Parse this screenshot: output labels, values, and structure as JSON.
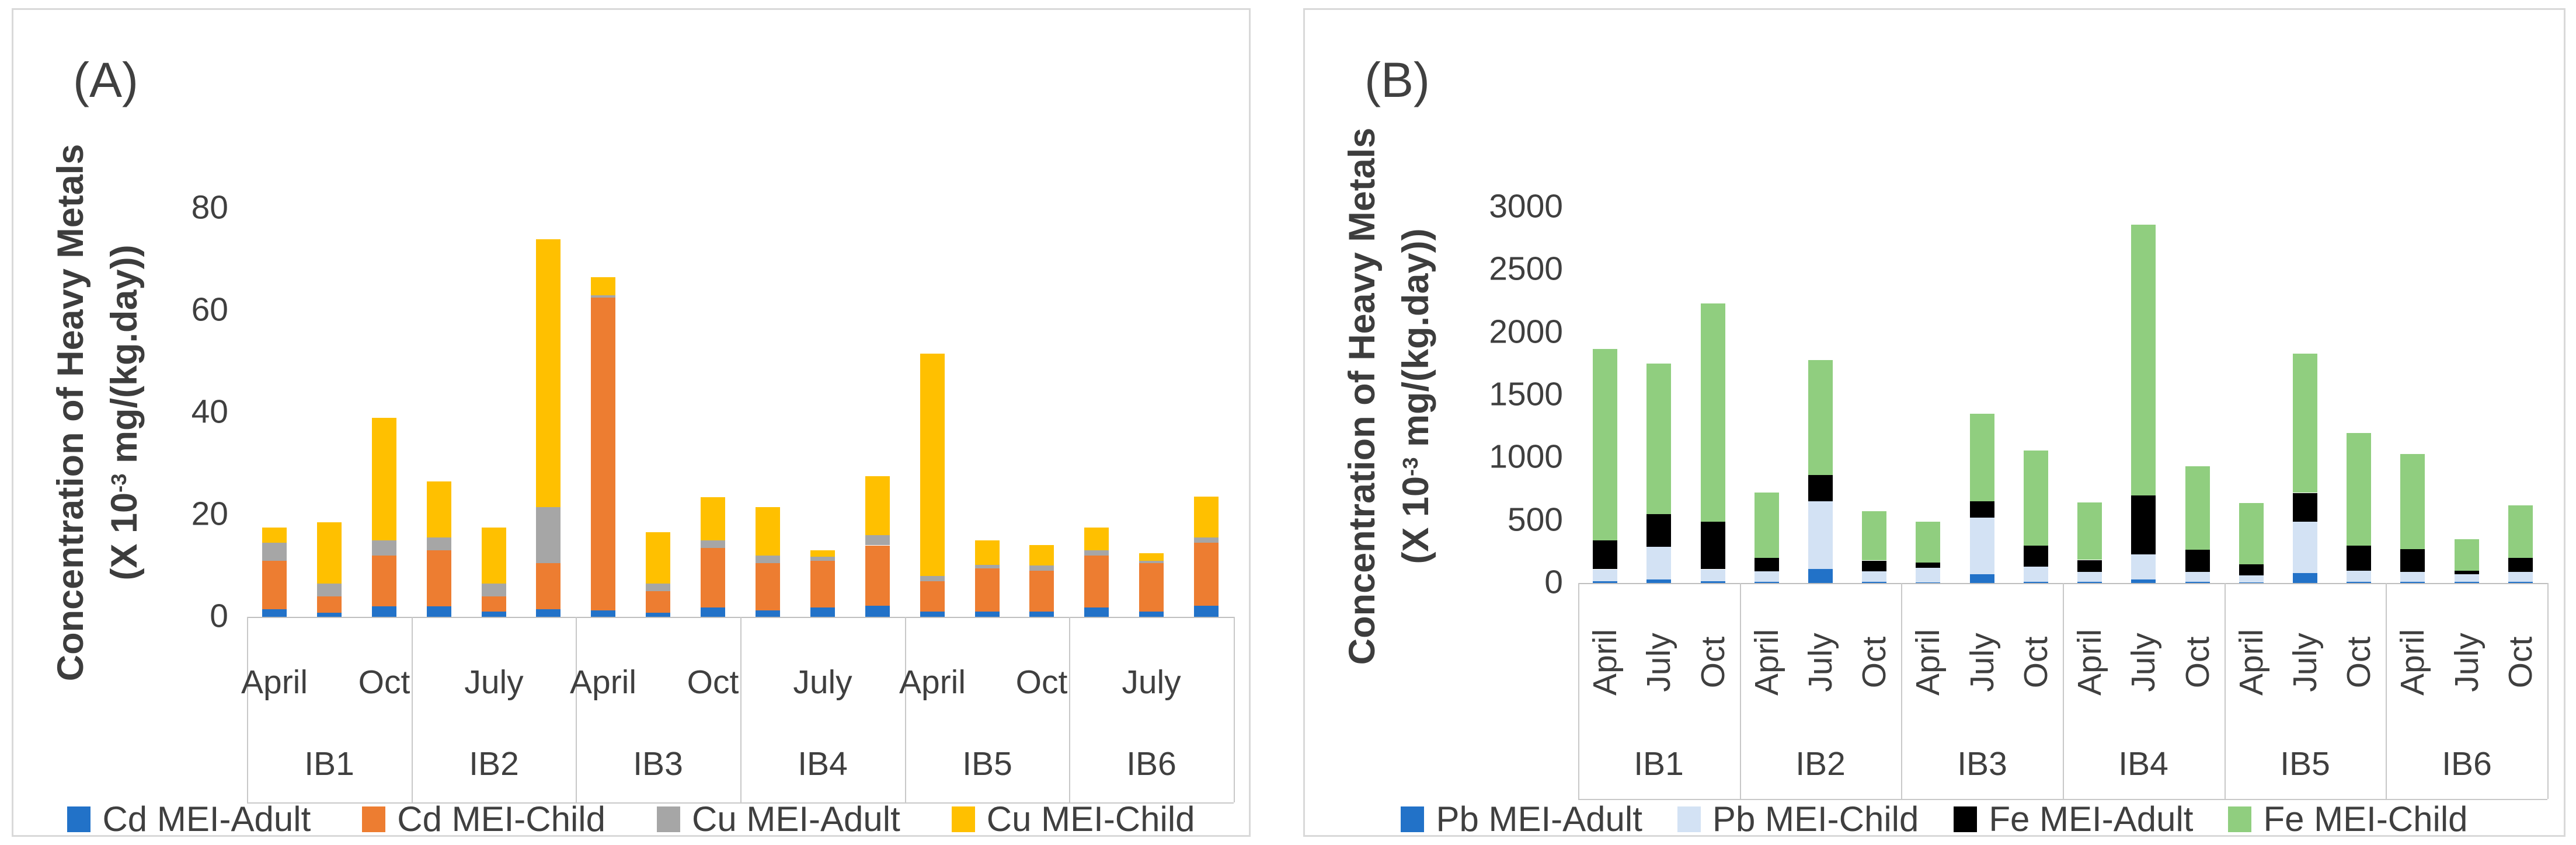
{
  "theme": {
    "background": "#ffffff",
    "panel_border": "#d9d9d9",
    "axis_line": "#bfbfbf",
    "text": "#3f3f3f"
  },
  "panels": [
    {
      "panel_label": "(A)",
      "y_axis_title_line1": "Concentration of Heavy Metals",
      "y_axis_unit": {
        "pre": "(X 10",
        "sup": "-3",
        "post": " mg/(kg.day))"
      },
      "chart_data": {
        "type": "bar",
        "stacked": true,
        "grid": false,
        "legend_position": "bottom",
        "ylim": [
          0,
          80
        ],
        "yticks": [
          0,
          20,
          40,
          60,
          80
        ],
        "groups": [
          "IB1",
          "IB2",
          "IB3",
          "IB4",
          "IB5",
          "IB6"
        ],
        "months_per_group": [
          "April",
          "July",
          "Oct"
        ],
        "month_tick_labels": [
          "April",
          "",
          "Oct",
          "",
          "July",
          "",
          "April",
          "",
          "Oct",
          "",
          "July",
          "",
          "April",
          "",
          "Oct",
          "",
          "July",
          ""
        ],
        "month_labels_rotated": false,
        "series": [
          {
            "name": "Cd MEI-Adult",
            "color": "#2272c8",
            "values": [
              1.5,
              0.8,
              2.0,
              2.0,
              1.0,
              1.5,
              1.2,
              0.8,
              1.8,
              1.2,
              1.8,
              2.2,
              1.0,
              1.0,
              1.0,
              1.8,
              1.0,
              2.2
            ]
          },
          {
            "name": "Cd MEI-Child",
            "color": "#ed7d31",
            "values": [
              9.5,
              3.2,
              10.0,
              11.0,
              3.0,
              9.0,
              61.3,
              4.2,
              11.7,
              9.3,
              9.2,
              11.8,
              6.0,
              8.5,
              8.0,
              10.2,
              9.5,
              12.3
            ]
          },
          {
            "name": "Cu MEI-Adult",
            "color": "#a6a6a6",
            "values": [
              3.5,
              2.5,
              3.0,
              2.5,
              2.5,
              11.0,
              0.5,
              1.5,
              1.5,
              1.5,
              0.8,
              2.0,
              1.0,
              0.7,
              1.0,
              1.0,
              0.5,
              1.0
            ]
          },
          {
            "name": "Cu MEI-Child",
            "color": "#ffc000",
            "values": [
              3.0,
              12.0,
              24.0,
              11.0,
              11.0,
              52.5,
              3.5,
              10.0,
              8.5,
              9.5,
              1.2,
              11.5,
              43.5,
              4.8,
              4.0,
              4.5,
              1.5,
              8.0
            ]
          }
        ]
      }
    },
    {
      "panel_label": "(B)",
      "y_axis_title_line1": "Concentration of Heavy Metals",
      "y_axis_unit": {
        "pre": "(X 10",
        "sup": "-3",
        "post": " mg/(kg.day))"
      },
      "chart_data": {
        "type": "bar",
        "stacked": true,
        "grid": false,
        "legend_position": "bottom",
        "ylim": [
          0,
          3000
        ],
        "yticks": [
          0,
          500,
          1000,
          1500,
          2000,
          2500,
          3000
        ],
        "groups": [
          "IB1",
          "IB2",
          "IB3",
          "IB4",
          "IB5",
          "IB6"
        ],
        "months_per_group": [
          "April",
          "July",
          "Oct"
        ],
        "month_tick_labels": [
          "April",
          "July",
          "Oct",
          "April",
          "July",
          "Oct",
          "April",
          "July",
          "Oct",
          "April",
          "July",
          "Oct",
          "April",
          "July",
          "Oct",
          "April",
          "July",
          "Oct"
        ],
        "month_labels_rotated": true,
        "series": [
          {
            "name": "Pb MEI-Adult",
            "color": "#2272c8",
            "values": [
              15,
              30,
              15,
              10,
              110,
              10,
              5,
              70,
              10,
              10,
              30,
              10,
              5,
              80,
              10,
              10,
              10,
              10
            ]
          },
          {
            "name": "Pb MEI-Child",
            "color": "#d3e2f4",
            "values": [
              95,
              260,
              95,
              85,
              540,
              85,
              115,
              450,
              120,
              80,
              200,
              80,
              55,
              410,
              90,
              80,
              60,
              80
            ]
          },
          {
            "name": "Fe MEI-Adult",
            "color": "#000000",
            "values": [
              230,
              260,
              380,
              105,
              210,
              85,
              45,
              130,
              170,
              95,
              470,
              175,
              90,
              230,
              200,
              180,
              30,
              110
            ]
          },
          {
            "name": "Fe MEI-Child",
            "color": "#90ce7f",
            "values": [
              1530,
              1200,
              1740,
              520,
              920,
              390,
              325,
              700,
              760,
              455,
              2160,
              665,
              490,
              1110,
              900,
              760,
              250,
              420
            ]
          }
        ]
      }
    }
  ]
}
